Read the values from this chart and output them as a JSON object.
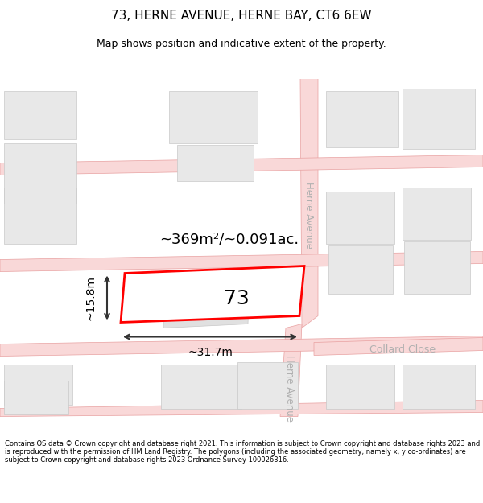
{
  "title": "73, HERNE AVENUE, HERNE BAY, CT6 6EW",
  "subtitle": "Map shows position and indicative extent of the property.",
  "footer": "Contains OS data © Crown copyright and database right 2021. This information is subject to Crown copyright and database rights 2023 and is reproduced with the permission of HM Land Registry. The polygons (including the associated geometry, namely x, y co-ordinates) are subject to Crown copyright and database rights 2023 Ordnance Survey 100026316.",
  "map_bg": "#f7f7f7",
  "plot_bg": "#ffffff",
  "road_fill": "#f9d8d8",
  "road_line": "#e8a0a0",
  "building_fill": "#e8e8e8",
  "building_edge": "#c8c8c8",
  "highlight_fill": "#ffffff",
  "highlight_edge": "#ff0000",
  "highlight_lw": 2.0,
  "street_label_color": "#b0b0b0",
  "dim_color": "#333333",
  "area_text": "~369m²/~0.091ac.",
  "width_text": "~31.7m",
  "height_text": "~15.8m",
  "property_number": "73",
  "collard_close_label": "Collard Close",
  "herne_avenue_label": "Herne Avenue"
}
